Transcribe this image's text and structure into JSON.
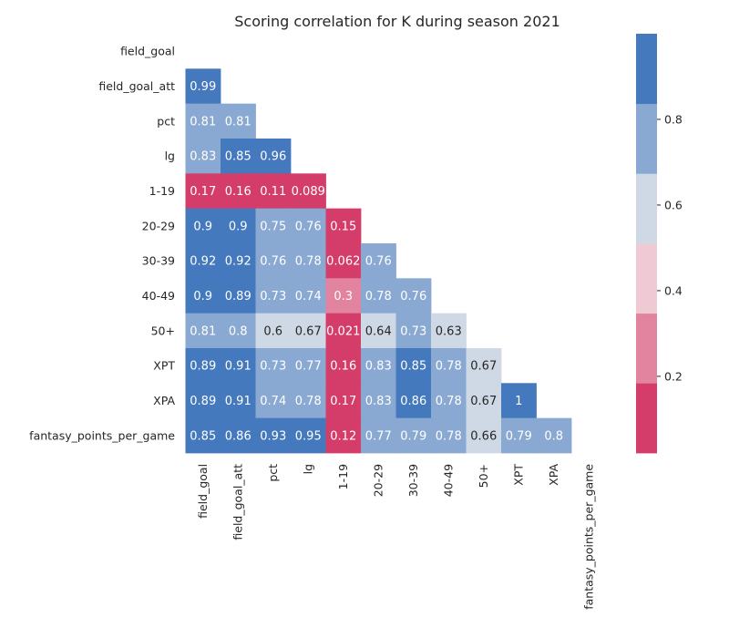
{
  "chart_data": {
    "type": "heatmap",
    "title": "Scoring correlation for K during season 2021",
    "variables": [
      "field_goal",
      "field_goal_att",
      "pct",
      "lg",
      "1-19",
      "20-29",
      "30-39",
      "40-49",
      "50+",
      "XPT",
      "XPA",
      "fantasy_points_per_game"
    ],
    "mask": "lower-triangle (diagonal and upper triangle hidden)",
    "rows": [
      [],
      [
        "0.99"
      ],
      [
        "0.81",
        "0.81"
      ],
      [
        "0.83",
        "0.85",
        "0.96"
      ],
      [
        "0.17",
        "0.16",
        "0.11",
        "0.089"
      ],
      [
        "0.9",
        "0.9",
        "0.75",
        "0.76",
        "0.15"
      ],
      [
        "0.92",
        "0.92",
        "0.76",
        "0.78",
        "0.062",
        "0.76"
      ],
      [
        "0.9",
        "0.89",
        "0.73",
        "0.74",
        "0.3",
        "0.78",
        "0.76"
      ],
      [
        "0.81",
        "0.8",
        "0.6",
        "0.67",
        "0.021",
        "0.64",
        "0.73",
        "0.63"
      ],
      [
        "0.89",
        "0.91",
        "0.73",
        "0.77",
        "0.16",
        "0.83",
        "0.85",
        "0.78",
        "0.67"
      ],
      [
        "0.89",
        "0.91",
        "0.74",
        "0.78",
        "0.17",
        "0.83",
        "0.86",
        "0.78",
        "0.67",
        "1"
      ],
      [
        "0.85",
        "0.86",
        "0.93",
        "0.95",
        "0.12",
        "0.77",
        "0.79",
        "0.78",
        "0.66",
        "0.79",
        "0.8"
      ]
    ],
    "colorbar": {
      "range": [
        0.021,
        1
      ],
      "ticks": [
        "0.2",
        "0.4",
        "0.6",
        "0.8"
      ],
      "colors": [
        "#d43d6a",
        "#e2839f",
        "#efcad5",
        "#cfd9e6",
        "#8aa9d2",
        "#4579bd"
      ]
    }
  }
}
